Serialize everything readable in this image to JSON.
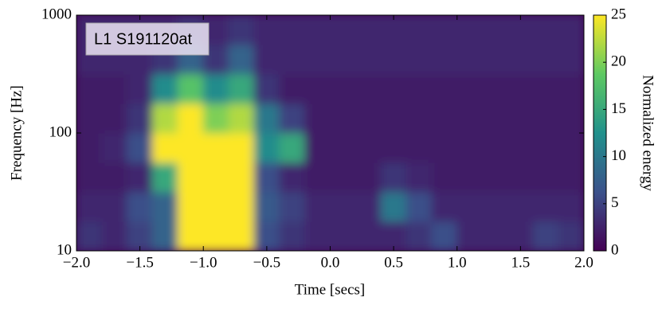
{
  "chart_data": {
    "type": "heatmap",
    "annotation": "L1 S191120at",
    "xlabel": "Time [secs]",
    "ylabel": "Frequency [Hz]",
    "colorbar_label": "Normalized energy",
    "colormap": "viridis",
    "yscale": "log",
    "x": [
      -1.9,
      -1.7,
      -1.5,
      -1.3,
      -1.1,
      -0.9,
      -0.7,
      -0.5,
      -0.3,
      -0.1,
      0.1,
      0.3,
      0.5,
      0.7,
      0.9,
      1.1,
      1.3,
      1.5,
      1.7,
      1.9
    ],
    "y": [
      13.3,
      23.7,
      42.2,
      75,
      133,
      237,
      422,
      750
    ],
    "z": [
      [
        4,
        3,
        5,
        8,
        25,
        25,
        25,
        6,
        4,
        3,
        3,
        3,
        3,
        4,
        6,
        3,
        3,
        3,
        5,
        4
      ],
      [
        3,
        3,
        6,
        8,
        25,
        25,
        25,
        7,
        5,
        3,
        3,
        3,
        10,
        6,
        3,
        3,
        3,
        3,
        3,
        3
      ],
      [
        2,
        2,
        3,
        15,
        25,
        25,
        25,
        6,
        3,
        2,
        2,
        2,
        4,
        3,
        2,
        2,
        2,
        2,
        2,
        2
      ],
      [
        2,
        3,
        6,
        25,
        25,
        25,
        25,
        12,
        15,
        2,
        2,
        2,
        2,
        2,
        2,
        2,
        2,
        2,
        2,
        2
      ],
      [
        2,
        2,
        4,
        22,
        25,
        20,
        22,
        10,
        5,
        2,
        2,
        2,
        2,
        2,
        2,
        2,
        2,
        2,
        2,
        2
      ],
      [
        2,
        2,
        3,
        12,
        18,
        12,
        15,
        4,
        2,
        2,
        2,
        2,
        2,
        2,
        2,
        2,
        2,
        2,
        2,
        2
      ],
      [
        3,
        3,
        3,
        4,
        8,
        4,
        8,
        3,
        3,
        3,
        3,
        3,
        3,
        3,
        3,
        3,
        3,
        3,
        3,
        3
      ],
      [
        3,
        3,
        3,
        3,
        4,
        3,
        4,
        3,
        3,
        3,
        3,
        3,
        3,
        3,
        3,
        3,
        3,
        3,
        3,
        3
      ]
    ],
    "xlim": [
      -2,
      2
    ],
    "xticks": [
      {
        "value": -2,
        "label": "−2.0"
      },
      {
        "value": -1.5,
        "label": "−1.5"
      },
      {
        "value": -1,
        "label": "−1.0"
      },
      {
        "value": -0.5,
        "label": "−0.5"
      },
      {
        "value": 0,
        "label": "0.0"
      },
      0.5,
      {
        "value": 1,
        "label": "1.0"
      },
      1.5,
      {
        "value": 2,
        "label": "2.0"
      }
    ],
    "ylim": [
      10,
      1000
    ],
    "yticks": [
      10,
      100,
      1000
    ],
    "clim": [
      0,
      25
    ],
    "cticks": [
      0,
      5,
      10,
      15,
      20,
      25
    ]
  }
}
